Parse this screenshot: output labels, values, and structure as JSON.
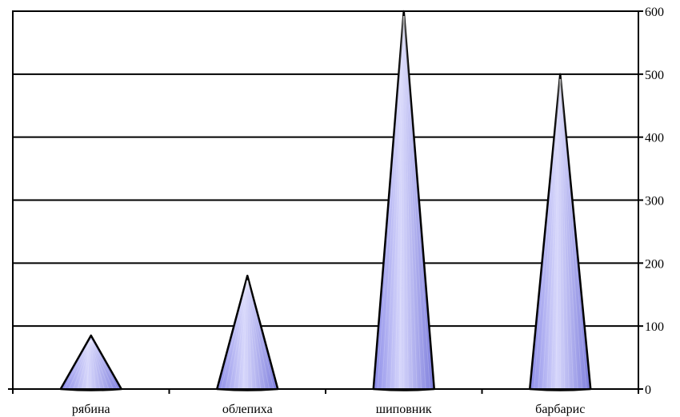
{
  "chart_data": {
    "type": "bar",
    "bar_shape": "cone",
    "title": "",
    "xlabel": "",
    "ylabel": "",
    "categories": [
      "рябина",
      "облепиха",
      "шиповник",
      "барбарис"
    ],
    "values": [
      85,
      180,
      600,
      500
    ],
    "ylim": [
      0,
      600
    ],
    "yticks": [
      "0",
      "100",
      "200",
      "300",
      "400",
      "500",
      "600"
    ],
    "y_axis_position": "right",
    "grid": true,
    "legend": "none",
    "colors": {
      "bar_fill": "#9a9af2",
      "bar_highlight": "#d6d6fb",
      "bar_stroke": "#000000",
      "grid": "#000000"
    }
  }
}
